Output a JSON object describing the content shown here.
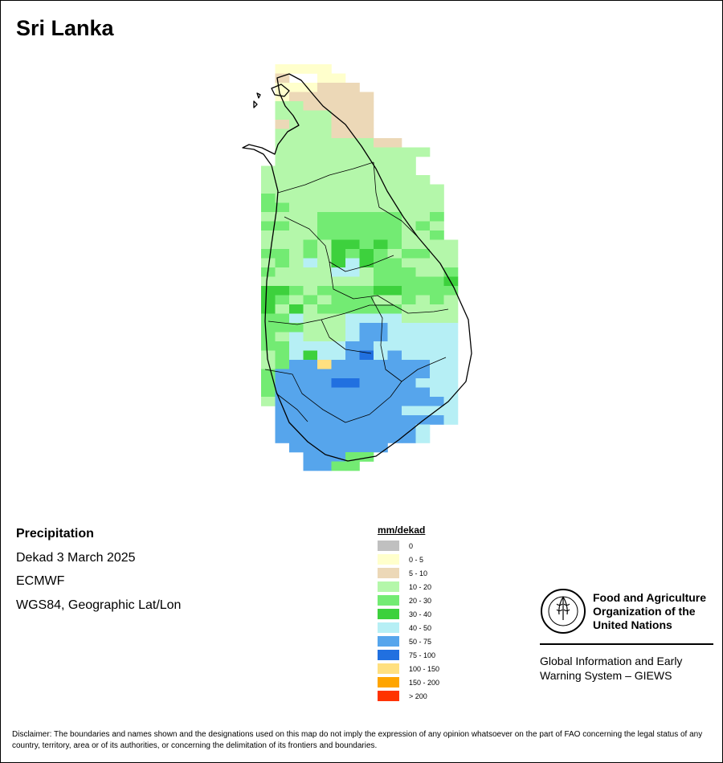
{
  "title": "Sri Lanka",
  "info": {
    "variable": "Precipitation",
    "period": "Dekad 3 March 2025",
    "source": "ECMWF",
    "projection": "WGS84, Geographic Lat/Lon"
  },
  "legend": {
    "unit": "mm/dekad",
    "classes": [
      {
        "label": "0",
        "color": "#c0c0c0"
      },
      {
        "label": "0 - 5",
        "color": "#ffffcc"
      },
      {
        "label": "5 - 10",
        "color": "#ecd8b7"
      },
      {
        "label": "10 - 20",
        "color": "#b4f7aa"
      },
      {
        "label": "20 - 30",
        "color": "#73eb73"
      },
      {
        "label": "30 - 40",
        "color": "#3dd13d"
      },
      {
        "label": "40 - 50",
        "color": "#b6eff5"
      },
      {
        "label": "50 - 75",
        "color": "#56a5ec"
      },
      {
        "label": "75 - 100",
        "color": "#2170e0"
      },
      {
        "label": "100 - 150",
        "color": "#ffe080"
      },
      {
        "label": "150 - 200",
        "color": "#ffa500"
      },
      {
        "label": "> 200",
        "color": "#ff3300"
      }
    ]
  },
  "grid": {
    "classes": [
      "...1111...........",
      "...2..11..........",
      "...111222.........",
      "...1222222........",
      "...3322222........",
      "...3333222........",
      "...2333222........",
      "...3333222........",
      "...333333322......",
      "...33333333333....",
      "...3333333333.....",
      "..33333333333.....",
      "..333333333333....",
      "..3333333333333...",
      "..4333333333333...",
      "..4433333333333...",
      "..3333444444334...",
      "..4433444444343...",
      "..3333444444334...",
      "..33343554543333..",
      "..44343545434433..",
      "..34363565443333..",
      "..43333663444334..",
      "..33333333444445..",
      "..55434444554444..",
      "..54343444334343..",
      "..53534444443333..",
      "..44633366663333..",
      "..44433367766666..",
      "..43633367766666..",
      "..44666677666666..",
      "..34656678676666..",
      "..34779777777766..",
      "..47777777777766..",
      "..47777887777666..",
      "..47777777777766..",
      "..37777777777776..",
      "...7777777776666..",
      "...7777777777776..",
      "...77777777776....",
      "...77777777776....",
      "....7777777.......",
      ".....77744........",
      ".....7744........."
    ]
  },
  "fao": {
    "name_line1": "Food and Agriculture",
    "name_line2": "Organization of the",
    "name_line3": "United Nations",
    "giews_line1": "Global Information and Early",
    "giews_line2": "Warning System – GIEWS",
    "logo_text": "FAO",
    "motto": "FIAT PANIS"
  },
  "disclaimer": "Disclaimer: The boundaries and names shown and the designations used on this map do not imply the expression of any opinion whatsoever on the part of FAO concerning the legal status of any country, territory, area or of its authorities, or concerning the delimitation of its frontiers and boundaries."
}
